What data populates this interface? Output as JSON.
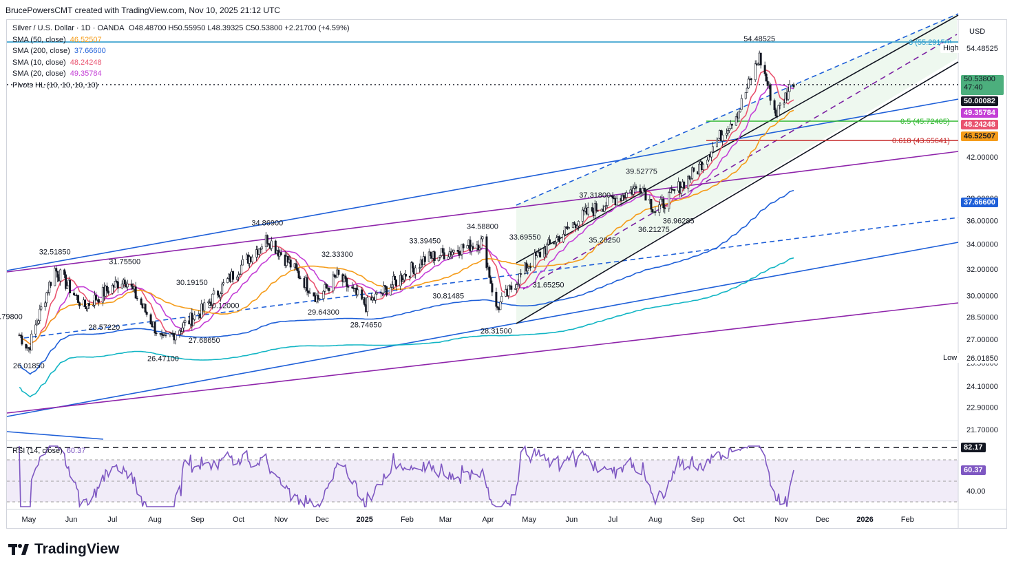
{
  "header": {
    "credit": "BrucePowersCMT created with TradingView.com, Nov 10, 2025 21:12 UTC"
  },
  "brand": {
    "name": "TradingView"
  },
  "legend": {
    "symbol": "Silver / U.S. Dollar · 1D · OANDA",
    "ohlc": "O48.48700 H50.55950 L48.39325 C50.53800 +2.21700 (+4.59%)",
    "indicators": [
      {
        "label": "SMA (50, close)",
        "value": "46.52507",
        "color": "#f59c1a"
      },
      {
        "label": "SMA (200, close)",
        "value": "37.66600",
        "color": "#1e5fd8"
      },
      {
        "label": "SMA (10, close)",
        "value": "48.24248",
        "color": "#e9536f"
      },
      {
        "label": "SMA (20, close)",
        "value": "49.35784",
        "color": "#c43fd6"
      },
      {
        "label": "Pivots HL (10, 10, 10, 10)",
        "value": "",
        "color": "#131722"
      }
    ],
    "rsi": {
      "label": "RSI (14, close)",
      "value": "60.37"
    }
  },
  "chart_data": {
    "type": "line",
    "title": "Silver / U.S. Dollar · 1D · OANDA",
    "xlabel": "",
    "ylabel": "USD",
    "ylim": [
      21.3,
      57.5
    ],
    "x_ticks": [
      "May",
      "Jun",
      "Jul",
      "Aug",
      "Sep",
      "Oct",
      "Nov",
      "Dec",
      "2025",
      "Feb",
      "Mar",
      "Apr",
      "May",
      "Jun",
      "Jul",
      "Aug",
      "Sep",
      "Oct",
      "Nov",
      "Dec",
      "2026",
      "Feb"
    ],
    "y_ticks": [
      "42.00000",
      "38.00000",
      "36.00000",
      "34.00000",
      "32.00000",
      "30.00000",
      "28.50000",
      "27.00000",
      "25.50000",
      "24.10000",
      "22.90000",
      "21.70000"
    ],
    "price_series_approx": [
      {
        "date": "2024-04-24",
        "close": 27.3
      },
      {
        "date": "2024-05-01",
        "close": 26.4
      },
      {
        "date": "2024-05-20",
        "close": 32.0
      },
      {
        "date": "2024-06-10",
        "close": 29.2
      },
      {
        "date": "2024-07-10",
        "close": 31.3
      },
      {
        "date": "2024-08-07",
        "close": 26.8
      },
      {
        "date": "2024-09-05",
        "close": 29.0
      },
      {
        "date": "2024-10-22",
        "close": 34.5
      },
      {
        "date": "2024-11-28",
        "close": 29.8
      },
      {
        "date": "2024-12-12",
        "close": 31.5
      },
      {
        "date": "2025-01-02",
        "close": 29.3
      },
      {
        "date": "2025-02-14",
        "close": 32.8
      },
      {
        "date": "2025-03-28",
        "close": 34.2
      },
      {
        "date": "2025-04-07",
        "close": 29.0
      },
      {
        "date": "2025-05-01",
        "close": 32.4
      },
      {
        "date": "2025-06-10",
        "close": 36.5
      },
      {
        "date": "2025-07-22",
        "close": 39.2
      },
      {
        "date": "2025-08-01",
        "close": 36.8
      },
      {
        "date": "2025-09-01",
        "close": 40.8
      },
      {
        "date": "2025-10-01",
        "close": 47.0
      },
      {
        "date": "2025-10-16",
        "close": 53.5
      },
      {
        "date": "2025-10-28",
        "close": 46.5
      },
      {
        "date": "2025-11-10",
        "close": 50.538
      }
    ],
    "pivot_labels": [
      "32.51850",
      "31.75500",
      "30.19150",
      "34.86900",
      "32.33300",
      "29.64300",
      "28.74650",
      "33.39450",
      "30.81485",
      "34.58800",
      "33.69550",
      "31.65250",
      "37.31800",
      "35.28250",
      "39.52775",
      "36.21275",
      "36.96285",
      "54.48525",
      "28.31500",
      "30.12000",
      "27.68650",
      "26.47100",
      "28.57220",
      "26.01850",
      ".79800"
    ],
    "fib_levels": [
      {
        "ratio": "3 (55.29150)",
        "price": 55.2915
      },
      {
        "ratio": "0.5 (45.72405)",
        "price": 45.72405
      },
      {
        "ratio": "0.618 (43.65641)",
        "price": 43.65641
      }
    ],
    "axis_badges": [
      {
        "text": "54.48525",
        "tag": "High"
      },
      {
        "text": "50.53800",
        "sub": "47:40"
      },
      {
        "text": "50.00082"
      },
      {
        "text": "49.35784"
      },
      {
        "text": "48.24248"
      },
      {
        "text": "46.52507"
      },
      {
        "text": "37.66600"
      },
      {
        "text": "26.01850",
        "tag": "Low"
      }
    ],
    "rsi": {
      "value": 60.37,
      "upper": "82.17",
      "tick": "40.00"
    }
  }
}
